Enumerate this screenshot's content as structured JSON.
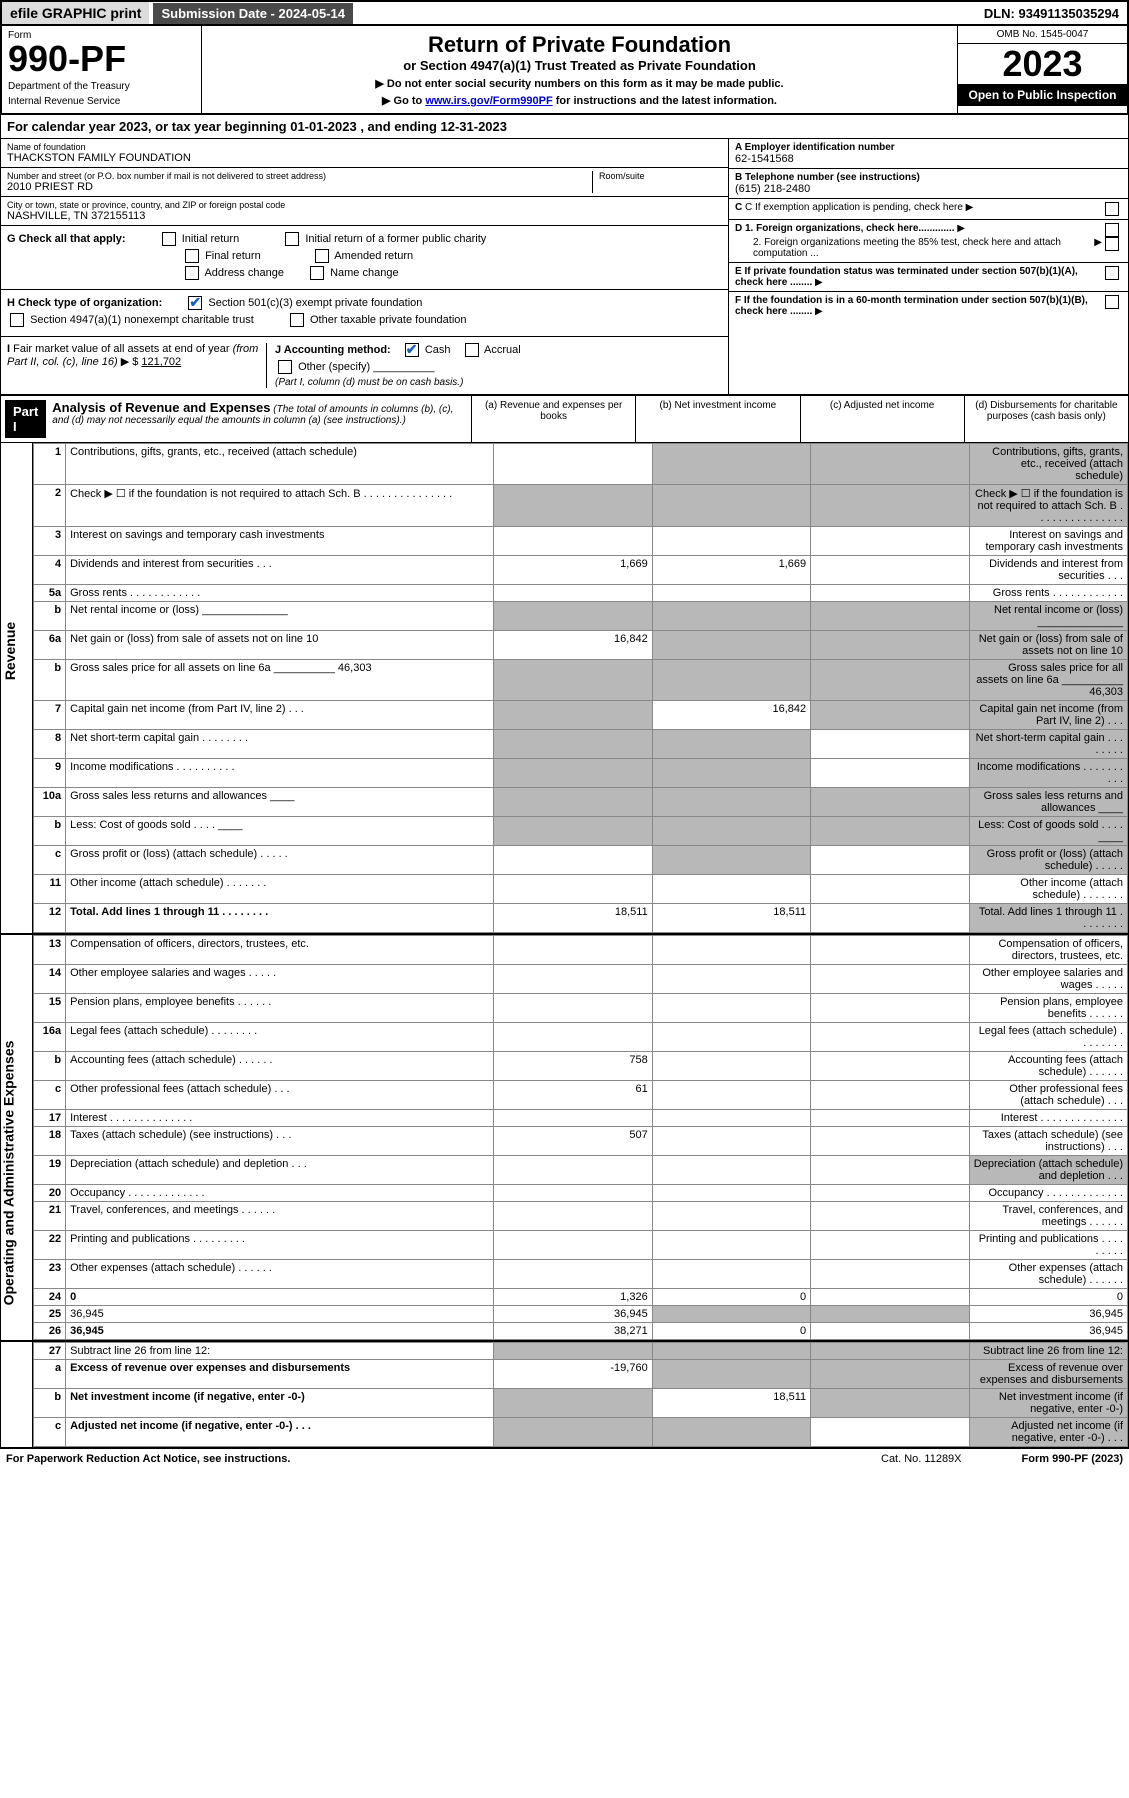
{
  "topbar": {
    "efile": "efile GRAPHIC print",
    "submission": "Submission Date - 2024-05-14",
    "dln": "DLN: 93491135035294"
  },
  "header": {
    "form_label": "Form",
    "form_no": "990-PF",
    "dept1": "Department of the Treasury",
    "dept2": "Internal Revenue Service",
    "title": "Return of Private Foundation",
    "subtitle": "or Section 4947(a)(1) Trust Treated as Private Foundation",
    "instr1": "▶ Do not enter social security numbers on this form as it may be made public.",
    "instr2_pre": "▶ Go to ",
    "instr2_link": "www.irs.gov/Form990PF",
    "instr2_post": " for instructions and the latest information.",
    "omb": "OMB No. 1545-0047",
    "year": "2023",
    "open": "Open to Public Inspection"
  },
  "cal_year": "For calendar year 2023, or tax year beginning 01-01-2023                              , and ending 12-31-2023",
  "info": {
    "name_label": "Name of foundation",
    "name": "THACKSTON FAMILY FOUNDATION",
    "addr_label": "Number and street (or P.O. box number if mail is not delivered to street address)",
    "addr": "2010 PRIEST RD",
    "room_label": "Room/suite",
    "city_label": "City or town, state or province, country, and ZIP or foreign postal code",
    "city": "NASHVILLE, TN  372155113",
    "ein_label": "A Employer identification number",
    "ein": "62-1541568",
    "phone_label": "B Telephone number (see instructions)",
    "phone": "(615) 218-2480",
    "c_label": "C If exemption application is pending, check here",
    "d1": "D 1. Foreign organizations, check here.............",
    "d2": "2. Foreign organizations meeting the 85% test, check here and attach computation ...",
    "e_label": "E  If private foundation status was terminated under section 507(b)(1)(A), check here ........",
    "f_label": "F  If the foundation is in a 60-month termination under section 507(b)(1)(B), check here ........"
  },
  "g": {
    "label": "G Check all that apply:",
    "opts": [
      "Initial return",
      "Final return",
      "Address change",
      "Initial return of a former public charity",
      "Amended return",
      "Name change"
    ]
  },
  "h": {
    "label": "H Check type of organization:",
    "opt1": "Section 501(c)(3) exempt private foundation",
    "opt2": "Section 4947(a)(1) nonexempt charitable trust",
    "opt3": "Other taxable private foundation"
  },
  "i": {
    "label": "I Fair market value of all assets at end of year (from Part II, col. (c), line 16)  ▶ $",
    "val": "121,702"
  },
  "j": {
    "label": "J Accounting method:",
    "cash": "Cash",
    "accrual": "Accrual",
    "other": "Other (specify)",
    "note": "(Part I, column (d) must be on cash basis.)"
  },
  "part1": {
    "part": "Part I",
    "title": "Analysis of Revenue and Expenses",
    "note": " (The total of amounts in columns (b), (c), and (d) may not necessarily equal the amounts in column (a) (see instructions).)",
    "col_a": "(a)   Revenue and expenses per books",
    "col_b": "(b)   Net investment income",
    "col_c": "(c)   Adjusted net income",
    "col_d": "(d)   Disbursements for charitable purposes (cash basis only)"
  },
  "side": {
    "revenue": "Revenue",
    "expenses": "Operating and Administrative Expenses"
  },
  "lines": [
    {
      "n": "1",
      "d": "Contributions, gifts, grants, etc., received (attach schedule)",
      "a": "",
      "b": "",
      "shade": [
        "b",
        "c",
        "d"
      ]
    },
    {
      "n": "2",
      "d": "Check ▶ ☐ if the foundation is not required to attach Sch. B      .   .   .   .   .   .   .   .   .   .   .   .   .   .   .",
      "shade": [
        "a",
        "b",
        "c",
        "d"
      ]
    },
    {
      "n": "3",
      "d": "Interest on savings and temporary cash investments"
    },
    {
      "n": "4",
      "d": "Dividends and interest from securities     .   .   .",
      "a": "1,669",
      "b": "1,669"
    },
    {
      "n": "5a",
      "d": "Gross rents        .   .   .   .   .   .   .   .   .   .   .   ."
    },
    {
      "n": "b",
      "d": "Net rental income or (loss)  ______________",
      "shade": [
        "a",
        "b",
        "c",
        "d"
      ]
    },
    {
      "n": "6a",
      "d": "Net gain or (loss) from sale of assets not on line 10",
      "a": "16,842",
      "shade": [
        "b",
        "c",
        "d"
      ]
    },
    {
      "n": "b",
      "d": "Gross sales price for all assets on line 6a __________ 46,303",
      "shade": [
        "a",
        "b",
        "c",
        "d"
      ]
    },
    {
      "n": "7",
      "d": "Capital gain net income (from Part IV, line 2)    .   .   .",
      "b": "16,842",
      "shade": [
        "a",
        "c",
        "d"
      ]
    },
    {
      "n": "8",
      "d": "Net short-term capital gain   .   .   .   .   .   .   .   .",
      "shade": [
        "a",
        "b",
        "d"
      ]
    },
    {
      "n": "9",
      "d": "Income modifications  .   .   .   .   .   .   .   .   .   .",
      "shade": [
        "a",
        "b",
        "d"
      ]
    },
    {
      "n": "10a",
      "d": "Gross sales less returns and allowances  ____",
      "shade": [
        "a",
        "b",
        "c",
        "d"
      ]
    },
    {
      "n": "b",
      "d": "Less: Cost of goods sold     .   .   .   .    ____",
      "shade": [
        "a",
        "b",
        "c",
        "d"
      ]
    },
    {
      "n": "c",
      "d": "Gross profit or (loss) (attach schedule)      .   .   .   .   .",
      "shade": [
        "b",
        "d"
      ]
    },
    {
      "n": "11",
      "d": "Other income (attach schedule)    .   .   .   .   .   .   ."
    },
    {
      "n": "12",
      "d": "Total. Add lines 1 through 11   .   .   .   .   .   .   .   .",
      "a": "18,511",
      "b": "18,511",
      "bold": true,
      "shade": [
        "d"
      ]
    }
  ],
  "exp_lines": [
    {
      "n": "13",
      "d": "Compensation of officers, directors, trustees, etc."
    },
    {
      "n": "14",
      "d": "Other employee salaries and wages    .   .   .   .   ."
    },
    {
      "n": "15",
      "d": "Pension plans, employee benefits  .   .   .   .   .   ."
    },
    {
      "n": "16a",
      "d": "Legal fees (attach schedule)  .   .   .   .   .   .   .   ."
    },
    {
      "n": "b",
      "d": "Accounting fees (attach schedule)  .   .   .   .   .   .",
      "a": "758"
    },
    {
      "n": "c",
      "d": "Other professional fees (attach schedule)    .   .   .",
      "a": "61"
    },
    {
      "n": "17",
      "d": "Interest  .   .   .   .   .   .   .   .   .   .   .   .   .   ."
    },
    {
      "n": "18",
      "d": "Taxes (attach schedule) (see instructions)       .   .   .",
      "a": "507"
    },
    {
      "n": "19",
      "d": "Depreciation (attach schedule) and depletion    .   .   .",
      "shade": [
        "d"
      ]
    },
    {
      "n": "20",
      "d": "Occupancy  .   .   .   .   .   .   .   .   .   .   .   .   ."
    },
    {
      "n": "21",
      "d": "Travel, conferences, and meetings  .   .   .   .   .   ."
    },
    {
      "n": "22",
      "d": "Printing and publications  .   .   .   .   .   .   .   .   ."
    },
    {
      "n": "23",
      "d": "Other expenses (attach schedule)  .   .   .   .   .   ."
    },
    {
      "n": "24",
      "d": "0",
      "a": "1,326",
      "b": "0",
      "bold": true
    },
    {
      "n": "25",
      "d": "36,945",
      "a": "36,945",
      "shade": [
        "b",
        "c"
      ]
    },
    {
      "n": "26",
      "d": "36,945",
      "a": "38,271",
      "b": "0",
      "bold": true
    }
  ],
  "net_lines": [
    {
      "n": "27",
      "d": "Subtract line 26 from line 12:",
      "shade": [
        "a",
        "b",
        "c",
        "d"
      ]
    },
    {
      "n": "a",
      "d": "Excess of revenue over expenses and disbursements",
      "a": "-19,760",
      "bold": true,
      "shade": [
        "b",
        "c",
        "d"
      ]
    },
    {
      "n": "b",
      "d": "Net investment income (if negative, enter -0-)",
      "b": "18,511",
      "bold": true,
      "shade": [
        "a",
        "c",
        "d"
      ]
    },
    {
      "n": "c",
      "d": "Adjusted net income (if negative, enter -0-)    .   .   .",
      "bold": true,
      "shade": [
        "a",
        "b",
        "d"
      ]
    }
  ],
  "footer": {
    "left": "For Paperwork Reduction Act Notice, see instructions.",
    "cat": "Cat. No. 11289X",
    "right": "Form 990-PF (2023)"
  }
}
